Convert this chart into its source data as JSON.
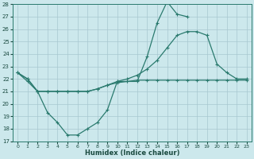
{
  "xlabel": "Humidex (Indice chaleur)",
  "x": [
    0,
    1,
    2,
    3,
    4,
    5,
    6,
    7,
    8,
    9,
    10,
    11,
    12,
    13,
    14,
    15,
    16,
    17,
    18,
    19,
    20,
    21,
    22,
    23
  ],
  "line_spiky": [
    22.5,
    22.0,
    21.0,
    19.3,
    18.5,
    17.5,
    17.5,
    18.0,
    18.5,
    19.5,
    21.8,
    21.8,
    21.8,
    23.8,
    26.5,
    28.2,
    27.2,
    27.0,
    null,
    null,
    null,
    null,
    null,
    null
  ],
  "line_flat": [
    22.5,
    21.8,
    21.0,
    21.0,
    21.0,
    21.0,
    21.0,
    21.0,
    21.2,
    21.5,
    21.7,
    21.8,
    21.9,
    21.9,
    21.9,
    21.9,
    21.9,
    21.9,
    21.9,
    21.9,
    21.9,
    21.9,
    21.9,
    21.9
  ],
  "line_rise": [
    22.5,
    22.0,
    21.0,
    21.0,
    21.0,
    21.0,
    21.0,
    21.0,
    21.2,
    21.5,
    21.8,
    22.0,
    22.3,
    22.8,
    23.5,
    24.5,
    25.5,
    25.8,
    25.8,
    25.5,
    23.2,
    22.5,
    22.0,
    22.0
  ],
  "line_color": "#2a7a6e",
  "bg_color": "#cce8ec",
  "grid_color": "#a8c8d0",
  "ylim_min": 17,
  "ylim_max": 28,
  "yticks": [
    17,
    18,
    19,
    20,
    21,
    22,
    23,
    24,
    25,
    26,
    27,
    28
  ],
  "xticks": [
    0,
    1,
    2,
    3,
    4,
    5,
    6,
    7,
    8,
    9,
    10,
    11,
    12,
    13,
    14,
    15,
    16,
    17,
    18,
    19,
    20,
    21,
    22,
    23
  ]
}
